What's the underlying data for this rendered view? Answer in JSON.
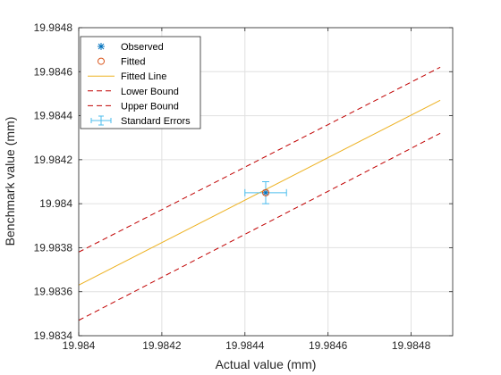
{
  "chart_data": {
    "type": "scatter",
    "title": "",
    "xlabel": "Actual value (mm)",
    "ylabel": "Benchmark value (mm)",
    "xlim": [
      19.984,
      19.9849
    ],
    "ylim": [
      19.9834,
      19.9848
    ],
    "xticks": [
      19.984,
      19.9842,
      19.9844,
      19.9846,
      19.9848
    ],
    "yticks": [
      19.9834,
      19.9836,
      19.9838,
      19.984,
      19.9842,
      19.9844,
      19.9846,
      19.9848
    ],
    "xtick_labels": [
      "19.984",
      "19.9842",
      "19.9844",
      "19.9846",
      "19.9848"
    ],
    "ytick_labels": [
      "19.9834",
      "19.9836",
      "19.9838",
      "19.984",
      "19.9842",
      "19.9844",
      "19.9846",
      "19.9848"
    ],
    "grid": true,
    "legend_position": "top-left",
    "series": [
      {
        "name": "Observed",
        "kind": "marker",
        "marker": "asterisk",
        "color": "#0072BD",
        "points": [
          {
            "x": 19.98445,
            "y": 19.98405
          }
        ]
      },
      {
        "name": "Fitted",
        "kind": "marker",
        "marker": "circle",
        "color": "#D95319",
        "points": [
          {
            "x": 19.98445,
            "y": 19.98405
          }
        ]
      },
      {
        "name": "Fitted Line",
        "kind": "line",
        "dash": "solid",
        "color": "#EDB120",
        "points": [
          {
            "x": 19.984,
            "y": 19.98363
          },
          {
            "x": 19.98487,
            "y": 19.98447
          }
        ]
      },
      {
        "name": "Lower Bound",
        "kind": "line",
        "dash": "dashed",
        "color": "#C00000",
        "points": [
          {
            "x": 19.984,
            "y": 19.98347
          },
          {
            "x": 19.98487,
            "y": 19.98432
          }
        ]
      },
      {
        "name": "Upper Bound",
        "kind": "line",
        "dash": "dashed",
        "color": "#C00000",
        "points": [
          {
            "x": 19.984,
            "y": 19.98378
          },
          {
            "x": 19.98487,
            "y": 19.98462
          }
        ]
      },
      {
        "name": "Standard Errors",
        "kind": "errorbar",
        "color": "#4DBEEE",
        "points": [
          {
            "x": 19.98445,
            "y": 19.98405,
            "xerr": 5e-05,
            "yerr": 5e-05
          }
        ]
      }
    ]
  }
}
